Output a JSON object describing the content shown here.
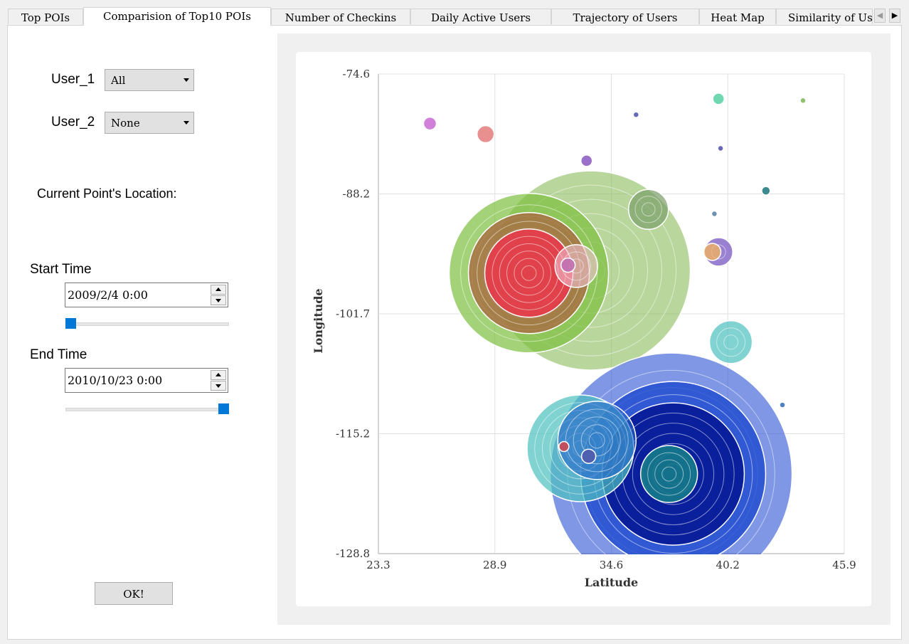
{
  "tabs": [
    {
      "label": "Top POIs",
      "active": false
    },
    {
      "label": "Comparision of Top10 POIs",
      "active": true
    },
    {
      "label": "Number of Checkins",
      "active": false
    },
    {
      "label": "Daily Active Users",
      "active": false
    },
    {
      "label": "Trajectory of Users",
      "active": false
    },
    {
      "label": "Heat Map",
      "active": false
    },
    {
      "label": "Similarity of Users",
      "active": false
    }
  ],
  "controls": {
    "user1_label": "User_1",
    "user1_value": "All",
    "user2_label": "User_2",
    "user2_value": "None",
    "location_label": "Current Point's Location:",
    "start_label": "Start Time",
    "start_value": "2009/2/4 0:00",
    "start_slider_fraction": 0,
    "end_label": "End Time",
    "end_value": "2010/10/23 0:00",
    "end_slider_fraction": 1,
    "ok_label": "OK!"
  },
  "chart_data": {
    "type": "scatter",
    "xlabel": "Latitude",
    "ylabel": "Longitude",
    "x_ticks": [
      "23.3",
      "28.9",
      "34.6",
      "40.2",
      "45.9"
    ],
    "y_ticks": [
      "-74.6",
      "-88.2",
      "-101.7",
      "-115.2",
      "-128.8"
    ],
    "xlim": [
      23.3,
      45.9
    ],
    "ylim": [
      -128.8,
      -74.6
    ],
    "grid": true,
    "points": [
      {
        "x": 33.6,
        "y": -96.8,
        "size": 140,
        "color": "#8bbd5a",
        "opacity": 0.6
      },
      {
        "x": 30.6,
        "y": -97.1,
        "size": 112,
        "color": "#7dbf3e",
        "opacity": 0.7
      },
      {
        "x": 30.6,
        "y": -97.1,
        "size": 85,
        "color": "#a66a40",
        "opacity": 0.8
      },
      {
        "x": 30.6,
        "y": -97.1,
        "size": 62,
        "color": "#e0414a",
        "opacity": 1.0
      },
      {
        "x": 36.4,
        "y": -89.9,
        "size": 28,
        "color": "#7a9e6a",
        "opacity": 0.7
      },
      {
        "x": 32.9,
        "y": -96.3,
        "size": 30,
        "color": "#f0c0d0",
        "opacity": 0.6
      },
      {
        "x": 32.5,
        "y": -96.2,
        "size": 10,
        "color": "#c070b0",
        "opacity": 0.9
      },
      {
        "x": 25.8,
        "y": -80.2,
        "size": 9,
        "color": "#d080d8",
        "opacity": 1.0
      },
      {
        "x": 28.5,
        "y": -81.4,
        "size": 12,
        "color": "#e89090",
        "opacity": 1.0
      },
      {
        "x": 33.4,
        "y": -84.4,
        "size": 8,
        "color": "#9a70c8",
        "opacity": 1.0
      },
      {
        "x": 39.8,
        "y": -77.4,
        "size": 8,
        "color": "#70d8b0",
        "opacity": 1.0
      },
      {
        "x": 35.8,
        "y": -79.2,
        "size": 4,
        "color": "#6868b8",
        "opacity": 1.0
      },
      {
        "x": 39.9,
        "y": -83.0,
        "size": 4,
        "color": "#6868b8",
        "opacity": 1.0
      },
      {
        "x": 43.9,
        "y": -77.6,
        "size": 4,
        "color": "#90c070",
        "opacity": 1.0
      },
      {
        "x": 42.1,
        "y": -87.8,
        "size": 6,
        "color": "#3a8a90",
        "opacity": 1.0
      },
      {
        "x": 39.6,
        "y": -90.4,
        "size": 4,
        "color": "#7090b0",
        "opacity": 1.0
      },
      {
        "x": 39.8,
        "y": -94.7,
        "size": 20,
        "color": "#9a80d0",
        "opacity": 1.0
      },
      {
        "x": 39.5,
        "y": -94.7,
        "size": 12,
        "color": "#f0b060",
        "opacity": 0.8
      },
      {
        "x": 40.4,
        "y": -104.9,
        "size": 30,
        "color": "#4bc0bf",
        "opacity": 0.7
      },
      {
        "x": 42.9,
        "y": -112.0,
        "size": 4,
        "color": "#5080c0",
        "opacity": 1.0
      },
      {
        "x": 37.5,
        "y": -119.8,
        "size": 170,
        "color": "#2952d4",
        "opacity": 0.6
      },
      {
        "x": 37.6,
        "y": -119.8,
        "size": 130,
        "color": "#1f4ad0",
        "opacity": 0.8
      },
      {
        "x": 37.6,
        "y": -119.8,
        "size": 100,
        "color": "#0a1f9c",
        "opacity": 1.0
      },
      {
        "x": 33.1,
        "y": -116.9,
        "size": 75,
        "color": "#4bc0bf",
        "opacity": 0.7
      },
      {
        "x": 33.9,
        "y": -116.0,
        "size": 55,
        "color": "#2a6acc",
        "opacity": 0.6
      },
      {
        "x": 37.4,
        "y": -119.8,
        "size": 40,
        "color": "#147a8a",
        "opacity": 0.9
      },
      {
        "x": 32.3,
        "y": -116.7,
        "size": 7,
        "color": "#c05060",
        "opacity": 1.0
      },
      {
        "x": 33.5,
        "y": -117.8,
        "size": 10,
        "color": "#5060b0",
        "opacity": 1.0
      }
    ]
  }
}
